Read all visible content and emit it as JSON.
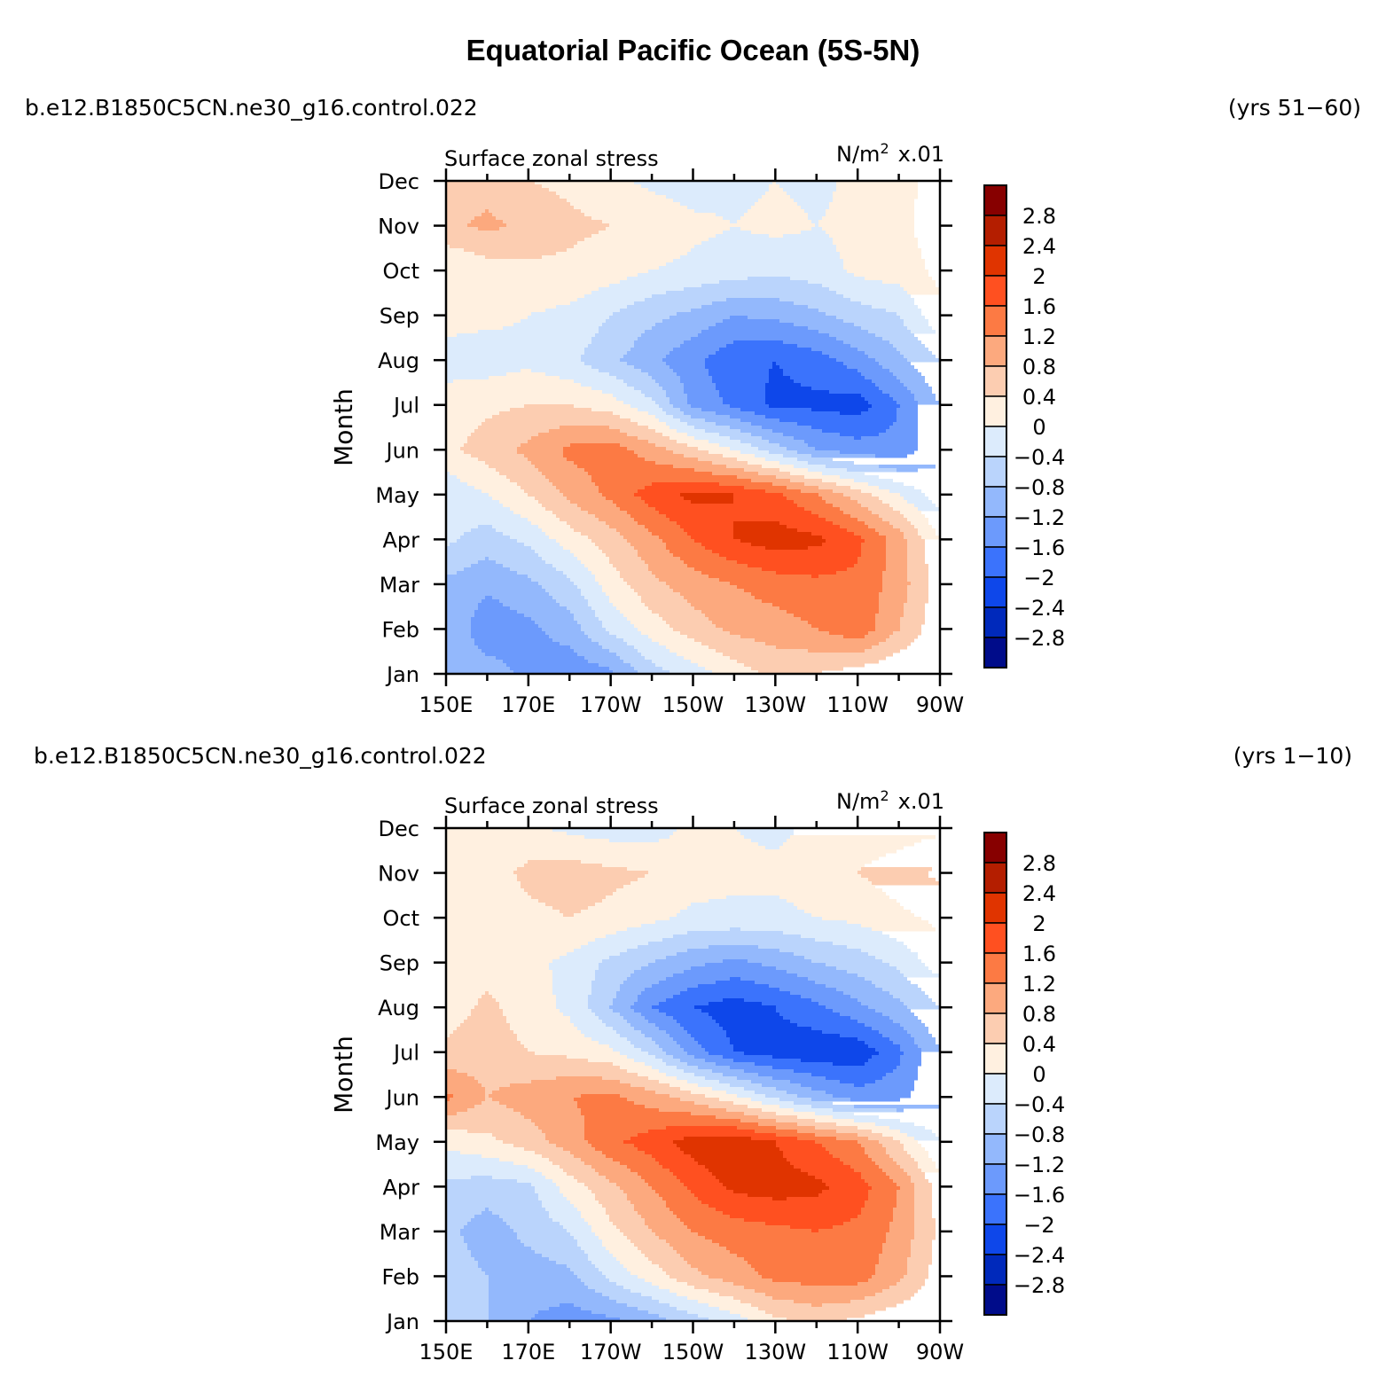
{
  "title": "Equatorial Pacific Ocean (5S-5N)",
  "colorbar": {
    "levels": [
      "2.8",
      "2.4",
      "2",
      "1.6",
      "1.2",
      "0.8",
      "0.4",
      "0",
      "−0.4",
      "−0.8",
      "−1.2",
      "−1.6",
      "−2",
      "−2.4",
      "−2.8"
    ],
    "colors": [
      "#870000",
      "#b41e00",
      "#e03400",
      "#ff5020",
      "#fc7a44",
      "#fca97e",
      "#fccdb1",
      "#fff0e0",
      "#dcebfc",
      "#bad4fc",
      "#93b8fc",
      "#6c9afc",
      "#3b73fc",
      "#0e47ea",
      "#0029bb",
      "#000c8a"
    ]
  },
  "chart_data": [
    {
      "type": "heatmap",
      "run_label": "b.e12.B1850C5CN.ne30_g16.control.022",
      "years_label": "(yrs 51−60)",
      "variable": "Surface zonal stress",
      "units_main": "N/m",
      "units_sup": "2",
      "units_scale": "x.01",
      "ylabel": "Month",
      "x_ticks": [
        "150E",
        "170E",
        "170W",
        "150W",
        "130W",
        "110W",
        "90W"
      ],
      "y_ticks": [
        "Jan",
        "Feb",
        "Mar",
        "Apr",
        "May",
        "Jun",
        "Jul",
        "Aug",
        "Sep",
        "Oct",
        "Nov",
        "Dec"
      ],
      "xlim_deg_east": [
        150,
        270
      ],
      "x_grid_deg_east": [
        150,
        160,
        170,
        180,
        190,
        200,
        210,
        220,
        230,
        240,
        250,
        260,
        270
      ],
      "months": [
        "Jan",
        "Feb",
        "Mar",
        "Apr",
        "May",
        "Jun",
        "Jul",
        "Aug",
        "Sep",
        "Oct",
        "Nov",
        "Dec"
      ],
      "values": [
        [
          -0.9,
          -1.0,
          -1.3,
          -1.5,
          -1.3,
          -0.6,
          -0.2,
          0.2,
          0.5,
          0.4,
          0.2,
          0.0,
          0.0
        ],
        [
          -0.8,
          -1.5,
          -1.3,
          -1.0,
          -0.3,
          0.2,
          0.6,
          0.9,
          1.0,
          1.2,
          1.5,
          0.8,
          0.1
        ],
        [
          -0.9,
          -1.1,
          -0.9,
          -0.5,
          0.2,
          0.7,
          1.0,
          1.2,
          1.4,
          1.5,
          1.5,
          1.0,
          0.2
        ],
        [
          -0.3,
          -0.6,
          -0.3,
          0.2,
          0.6,
          1.1,
          1.6,
          2.0,
          2.2,
          2.1,
          1.7,
          1.0,
          0.0
        ],
        [
          -0.3,
          0.0,
          0.4,
          0.9,
          1.3,
          1.8,
          2.1,
          2.0,
          1.7,
          1.2,
          0.6,
          0.0,
          -0.6
        ],
        [
          0.3,
          0.6,
          0.9,
          1.3,
          1.4,
          1.0,
          0.5,
          0.0,
          -0.6,
          -1.2,
          -1.4,
          -1.5,
          -0.9
        ],
        [
          0.1,
          0.3,
          0.4,
          0.4,
          0.2,
          -0.3,
          -1.3,
          -1.7,
          -2.1,
          -2.1,
          -2.2,
          -1.6,
          -0.8
        ],
        [
          -0.1,
          -0.2,
          -0.1,
          -0.3,
          -0.7,
          -1.1,
          -1.5,
          -1.9,
          -2.0,
          -1.8,
          -1.4,
          -0.9,
          -0.4
        ],
        [
          0.1,
          0.1,
          0.0,
          -0.1,
          -0.4,
          -0.7,
          -0.9,
          -1.2,
          -1.1,
          -0.9,
          -0.6,
          -0.4,
          0.3
        ],
        [
          0.0,
          0.2,
          0.3,
          0.3,
          0.2,
          0.0,
          -0.1,
          -0.2,
          -0.3,
          -0.2,
          0.1,
          0.2,
          0.5
        ],
        [
          0.7,
          0.9,
          0.7,
          0.5,
          0.4,
          0.3,
          0.1,
          0.0,
          0.1,
          0.0,
          0.1,
          0.3,
          0.6
        ],
        [
          0.5,
          0.6,
          0.4,
          0.3,
          0.1,
          -0.1,
          -0.2,
          -0.1,
          0.0,
          -0.1,
          0.1,
          0.3,
          0.5
        ]
      ]
    },
    {
      "type": "heatmap",
      "run_label": "b.e12.B1850C5CN.ne30_g16.control.022",
      "years_label": "(yrs 1−10)",
      "variable": "Surface zonal stress",
      "units_main": "N/m",
      "units_sup": "2",
      "units_scale": "x.01",
      "ylabel": "Month",
      "x_ticks": [
        "150E",
        "170E",
        "170W",
        "150W",
        "130W",
        "110W",
        "90W"
      ],
      "y_ticks": [
        "Jan",
        "Feb",
        "Mar",
        "Apr",
        "May",
        "Jun",
        "Jul",
        "Aug",
        "Sep",
        "Oct",
        "Nov",
        "Dec"
      ],
      "xlim_deg_east": [
        150,
        270
      ],
      "x_grid_deg_east": [
        150,
        160,
        170,
        180,
        190,
        200,
        210,
        220,
        230,
        240,
        250,
        260,
        270
      ],
      "months": [
        "Jan",
        "Feb",
        "Mar",
        "Apr",
        "May",
        "Jun",
        "Jul",
        "Aug",
        "Sep",
        "Oct",
        "Nov",
        "Dec"
      ],
      "values": [
        [
          -0.7,
          -0.8,
          -1.2,
          -1.4,
          -1.3,
          -1.0,
          -0.6,
          -0.2,
          0.3,
          0.5,
          0.3,
          0.1,
          0.0
        ],
        [
          -0.6,
          -0.8,
          -1.0,
          -0.9,
          -0.3,
          0.2,
          0.7,
          1.0,
          1.3,
          1.4,
          1.4,
          0.9,
          0.2
        ],
        [
          -0.7,
          -1.0,
          -0.7,
          -0.4,
          0.3,
          0.8,
          1.2,
          1.4,
          1.5,
          1.6,
          1.5,
          1.1,
          0.3
        ],
        [
          -0.5,
          -0.6,
          -0.5,
          0.2,
          0.7,
          1.2,
          1.7,
          2.1,
          2.2,
          2.1,
          1.8,
          1.2,
          0.2
        ],
        [
          0.1,
          0.3,
          0.6,
          1.0,
          1.5,
          1.8,
          2.2,
          2.3,
          2.0,
          1.6,
          1.2,
          0.4,
          -0.4
        ],
        [
          1.3,
          0.8,
          1.0,
          1.2,
          1.3,
          1.0,
          0.6,
          0.1,
          -0.5,
          -1.0,
          -1.4,
          -1.3,
          -0.9
        ],
        [
          0.5,
          0.6,
          0.4,
          0.3,
          0.1,
          -0.5,
          -1.4,
          -2.0,
          -2.2,
          -2.3,
          -2.3,
          -1.7,
          -0.8
        ],
        [
          0.2,
          0.5,
          0.2,
          -0.1,
          -0.8,
          -1.6,
          -2.0,
          -2.2,
          -2.0,
          -1.7,
          -1.3,
          -0.9,
          -0.4
        ],
        [
          0.1,
          0.2,
          0.1,
          -0.1,
          -0.5,
          -0.8,
          -1.1,
          -1.3,
          -1.1,
          -0.8,
          -0.6,
          -0.3,
          0.2
        ],
        [
          0.0,
          0.2,
          0.3,
          0.4,
          0.3,
          0.1,
          -0.1,
          -0.1,
          -0.1,
          0.0,
          0.1,
          0.3,
          0.5
        ],
        [
          0.1,
          0.2,
          0.5,
          0.6,
          0.5,
          0.4,
          0.2,
          0.1,
          0.1,
          0.2,
          0.4,
          0.6,
          0.9
        ],
        [
          0.2,
          0.1,
          0.1,
          -0.1,
          -0.2,
          -0.2,
          0.1,
          0.0,
          -0.1,
          0.1,
          0.2,
          0.2,
          0.3
        ]
      ]
    }
  ]
}
